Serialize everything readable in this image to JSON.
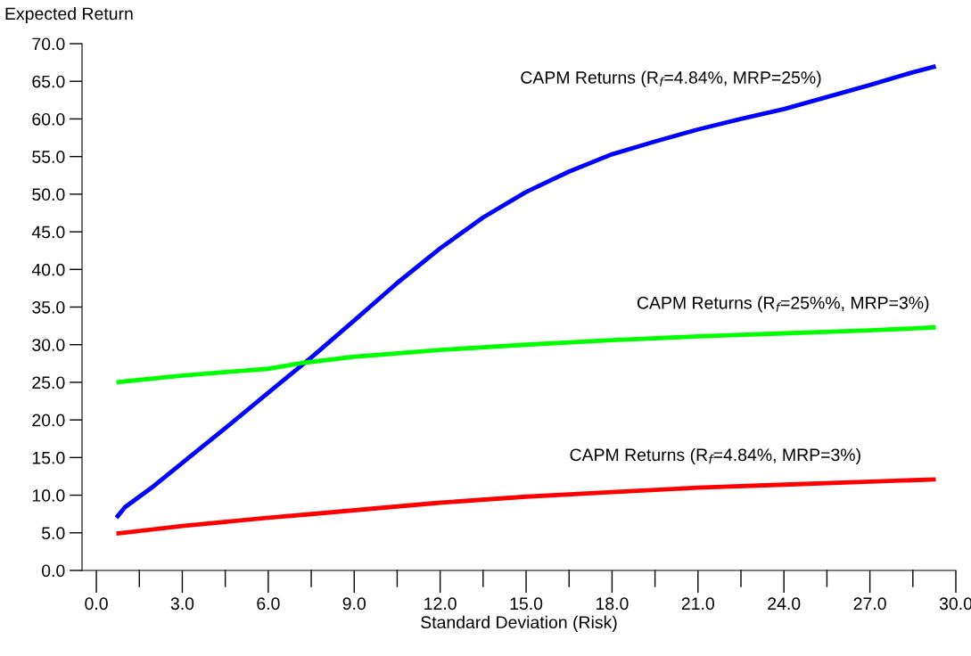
{
  "chart_data": {
    "type": "line",
    "xlabel": "Standard Deviation (Risk)",
    "ylabel": "Expected Return",
    "x": [
      0.7,
      1.2,
      3,
      6,
      7.25,
      9,
      12,
      15,
      18,
      21,
      24,
      27,
      29.3
    ],
    "series": [
      {
        "name": "CAPM Returns (R$_{f}$=4.84%, MRP=25%)",
        "color": "#0000ff",
        "x": [
          0.7,
          1.0,
          1.5,
          2.0,
          3,
          4.5,
          6,
          7.5,
          9,
          10.5,
          12,
          13.5,
          15,
          16.5,
          18,
          19.5,
          21,
          22.5,
          24,
          25.5,
          27,
          28.5,
          29.3
        ],
        "values": [
          7.0,
          8.4,
          9.8,
          11.2,
          14.3,
          18.9,
          23.6,
          28.3,
          33.2,
          38.2,
          42.8,
          46.9,
          50.3,
          53.0,
          55.3,
          57.0,
          58.6,
          60.0,
          61.3,
          62.9,
          64.5,
          66.2,
          67.0
        ]
      },
      {
        "name": "CAPM Returns (R$_{f}$=25%%, MRP=3%)",
        "color": "#00ff00",
        "values": [
          25.0,
          25.2,
          25.9,
          26.8,
          27.6,
          28.4,
          29.3,
          30.0,
          30.6,
          31.1,
          31.5,
          31.9,
          32.3
        ]
      },
      {
        "name": "CAPM Returns (R$_{f}$=4.84%, MRP=3%)",
        "color": "#ff0000",
        "values": [
          4.9,
          5.1,
          5.9,
          7.0,
          7.4,
          8.0,
          9.0,
          9.8,
          10.4,
          11.0,
          11.4,
          11.8,
          12.1
        ]
      }
    ],
    "xlim": [
      -0.5,
      30
    ],
    "ylim": [
      0,
      70
    ],
    "xticks": [
      {
        "value": 0,
        "label": "0.0"
      },
      {
        "value": 3,
        "label": "3.0"
      },
      {
        "value": 6,
        "label": "6.0"
      },
      {
        "value": 9,
        "label": "9.0"
      },
      {
        "value": 12,
        "label": "12.0"
      },
      {
        "value": 15,
        "label": "15.0"
      },
      {
        "value": 18,
        "label": "18.0"
      },
      {
        "value": 21,
        "label": "21.0"
      },
      {
        "value": 24,
        "label": "24.0"
      },
      {
        "value": 27,
        "label": "27.0"
      },
      {
        "value": 30,
        "label": "30.0"
      }
    ],
    "yticks": [
      {
        "value": 0,
        "label": "0.0"
      },
      {
        "value": 5,
        "label": "5.0"
      },
      {
        "value": 10,
        "label": "10.0"
      },
      {
        "value": 15,
        "label": "15.0"
      },
      {
        "value": 20,
        "label": "20.0"
      },
      {
        "value": 25,
        "label": "25.0"
      },
      {
        "value": 30,
        "label": "30.0"
      },
      {
        "value": 35,
        "label": "35.0"
      },
      {
        "value": 40,
        "label": "40.0"
      },
      {
        "value": 45,
        "label": "45.0"
      },
      {
        "value": 50,
        "label": "50.0"
      },
      {
        "value": 55,
        "label": "55.0"
      },
      {
        "value": 60,
        "label": "60.0"
      },
      {
        "value": 65,
        "label": "65.0"
      },
      {
        "value": 70,
        "label": "70.0"
      }
    ],
    "grid": false,
    "legend": false,
    "line_style": "solid",
    "marker": "none"
  }
}
